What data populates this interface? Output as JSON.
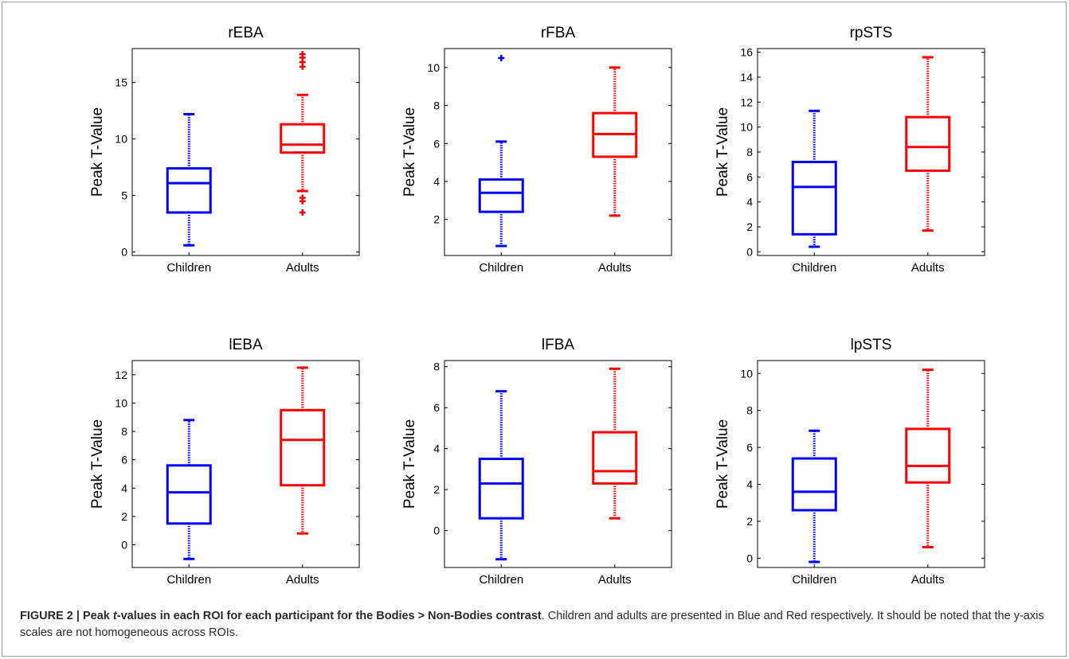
{
  "figure": {
    "caption": {
      "label": "FIGURE 2 | Peak ",
      "label_italic": "t",
      "label_rest": "-values in each ROI for each participant for the Bodies > Non-Bodies contrast",
      "text": ". Children and adults are presented in Blue and Red respectively. It should be noted that the y-axis scales are not homogeneous across ROIs."
    }
  },
  "colors": {
    "children": "#0000ff",
    "adults": "#ff0000"
  },
  "chart_data": [
    {
      "type": "boxplot",
      "title": "rEBA",
      "ylabel": "Peak T-Value",
      "categories": [
        "Children",
        "Adults"
      ],
      "ylim": [
        -0.3,
        18
      ],
      "yticks": [
        0,
        5,
        10,
        15
      ],
      "boxes": [
        {
          "name": "Children",
          "whisker_low": 0.6,
          "q1": 3.5,
          "median": 6.1,
          "q3": 7.4,
          "whisker_high": 12.2,
          "outliers": []
        },
        {
          "name": "Adults",
          "whisker_low": 5.4,
          "q1": 8.8,
          "median": 9.5,
          "q3": 11.3,
          "whisker_high": 13.9,
          "outliers": [
            3.5,
            4.5,
            4.8,
            16.4,
            16.8,
            17.2,
            17.5
          ]
        }
      ]
    },
    {
      "type": "boxplot",
      "title": "rFBA",
      "ylabel": "Peak T-Value",
      "categories": [
        "Children",
        "Adults"
      ],
      "ylim": [
        0.1,
        11
      ],
      "yticks": [
        2,
        4,
        6,
        8,
        10
      ],
      "boxes": [
        {
          "name": "Children",
          "whisker_low": 0.6,
          "q1": 2.4,
          "median": 3.4,
          "q3": 4.1,
          "whisker_high": 6.1,
          "outliers": [
            10.5
          ]
        },
        {
          "name": "Adults",
          "whisker_low": 2.2,
          "q1": 5.3,
          "median": 6.5,
          "q3": 7.6,
          "whisker_high": 10,
          "outliers": []
        }
      ]
    },
    {
      "type": "boxplot",
      "title": "rpSTS",
      "ylabel": "Peak T-Value",
      "categories": [
        "Children",
        "Adults"
      ],
      "ylim": [
        -0.3,
        16.3
      ],
      "yticks": [
        0,
        2,
        4,
        6,
        8,
        10,
        12,
        14,
        16
      ],
      "boxes": [
        {
          "name": "Children",
          "whisker_low": 0.4,
          "q1": 1.4,
          "median": 5.2,
          "q3": 7.2,
          "whisker_high": 11.3,
          "outliers": []
        },
        {
          "name": "Adults",
          "whisker_low": 1.7,
          "q1": 6.5,
          "median": 8.4,
          "q3": 10.8,
          "whisker_high": 15.6,
          "outliers": []
        }
      ]
    },
    {
      "type": "boxplot",
      "title": "lEBA",
      "ylabel": "Peak T-Value",
      "categories": [
        "Children",
        "Adults"
      ],
      "ylim": [
        -1.6,
        13
      ],
      "yticks": [
        0,
        2,
        4,
        6,
        8,
        10,
        12
      ],
      "boxes": [
        {
          "name": "Children",
          "whisker_low": -1,
          "q1": 1.5,
          "median": 3.7,
          "q3": 5.6,
          "whisker_high": 8.8,
          "outliers": []
        },
        {
          "name": "Adults",
          "whisker_low": 0.8,
          "q1": 4.2,
          "median": 7.4,
          "q3": 9.5,
          "whisker_high": 12.5,
          "outliers": []
        }
      ]
    },
    {
      "type": "boxplot",
      "title": "lFBA",
      "ylabel": "Peak T-Value",
      "categories": [
        "Children",
        "Adults"
      ],
      "ylim": [
        -1.8,
        8.3
      ],
      "yticks": [
        0,
        2,
        4,
        6,
        8
      ],
      "boxes": [
        {
          "name": "Children",
          "whisker_low": -1.4,
          "q1": 0.6,
          "median": 2.3,
          "q3": 3.5,
          "whisker_high": 6.8,
          "outliers": []
        },
        {
          "name": "Adults",
          "whisker_low": 0.6,
          "q1": 2.3,
          "median": 2.9,
          "q3": 4.8,
          "whisker_high": 7.9,
          "outliers": []
        }
      ]
    },
    {
      "type": "boxplot",
      "title": "lpSTS",
      "ylabel": "Peak T-Value",
      "categories": [
        "Children",
        "Adults"
      ],
      "ylim": [
        -0.5,
        10.7
      ],
      "yticks": [
        0,
        2,
        4,
        6,
        8,
        10
      ],
      "boxes": [
        {
          "name": "Children",
          "whisker_low": -0.2,
          "q1": 2.6,
          "median": 3.6,
          "q3": 5.4,
          "whisker_high": 6.9,
          "outliers": []
        },
        {
          "name": "Adults",
          "whisker_low": 0.6,
          "q1": 4.1,
          "median": 5,
          "q3": 7,
          "whisker_high": 10.2,
          "outliers": []
        }
      ]
    }
  ]
}
